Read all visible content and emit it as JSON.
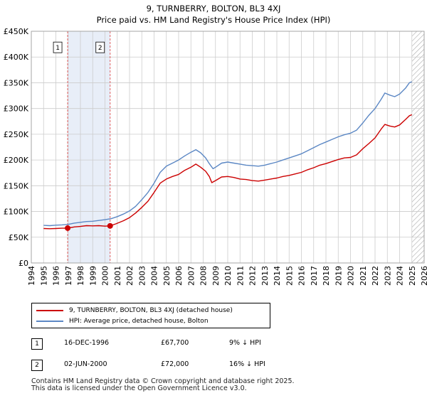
{
  "title": "9, TURNBERRY, BOLTON, BL3 4XJ",
  "subtitle": "Price paid vs. HM Land Registry's House Price Index (HPI)",
  "colors": {
    "property": "#cc0000",
    "hpi": "#5b87c4",
    "shade": "#e8eef8",
    "grid": "#cccccc",
    "marker_line": "#e06060",
    "future_hatch": "#aaaaaa"
  },
  "chart_data": {
    "type": "line",
    "xlim": [
      1994,
      2026
    ],
    "ylim": [
      0,
      450000
    ],
    "x_ticks": [
      1994,
      1995,
      1996,
      1997,
      1998,
      1999,
      2000,
      2001,
      2002,
      2003,
      2004,
      2005,
      2006,
      2007,
      2008,
      2009,
      2010,
      2011,
      2012,
      2013,
      2014,
      2015,
      2016,
      2017,
      2018,
      2019,
      2020,
      2021,
      2022,
      2023,
      2024,
      2025,
      2026
    ],
    "y_ticks": [
      0,
      50000,
      100000,
      150000,
      200000,
      250000,
      300000,
      350000,
      400000,
      450000
    ],
    "y_tick_labels": [
      "£0",
      "£50K",
      "£100K",
      "£150K",
      "£200K",
      "£250K",
      "£300K",
      "£350K",
      "£400K",
      "£450K"
    ],
    "shaded_span": [
      1996.96,
      2000.42
    ],
    "future_start": 2025.0,
    "series": [
      {
        "name": "9, TURNBERRY, BOLTON, BL3 4XJ (detached house)",
        "color": "#cc0000",
        "points": [
          [
            1995.0,
            67000
          ],
          [
            1995.5,
            66500
          ],
          [
            1996.0,
            67000
          ],
          [
            1996.5,
            67500
          ],
          [
            1996.96,
            67700
          ],
          [
            1997.5,
            70000
          ],
          [
            1998.0,
            71000
          ],
          [
            1998.5,
            72500
          ],
          [
            1999.0,
            72000
          ],
          [
            1999.5,
            72500
          ],
          [
            2000.0,
            71500
          ],
          [
            2000.42,
            72000
          ],
          [
            2000.9,
            76000
          ],
          [
            2001.5,
            82000
          ],
          [
            2002.0,
            88000
          ],
          [
            2002.5,
            97000
          ],
          [
            2003.0,
            108000
          ],
          [
            2003.5,
            120000
          ],
          [
            2004.0,
            137000
          ],
          [
            2004.5,
            155000
          ],
          [
            2005.0,
            163000
          ],
          [
            2005.5,
            168000
          ],
          [
            2006.0,
            172000
          ],
          [
            2006.5,
            180000
          ],
          [
            2007.0,
            186000
          ],
          [
            2007.4,
            192000
          ],
          [
            2007.8,
            186000
          ],
          [
            2008.2,
            178000
          ],
          [
            2008.5,
            168000
          ],
          [
            2008.7,
            156000
          ],
          [
            2009.0,
            160000
          ],
          [
            2009.5,
            167000
          ],
          [
            2010.0,
            168000
          ],
          [
            2010.5,
            166000
          ],
          [
            2011.0,
            163000
          ],
          [
            2011.5,
            162000
          ],
          [
            2012.0,
            160000
          ],
          [
            2012.5,
            159000
          ],
          [
            2013.0,
            161000
          ],
          [
            2013.5,
            163000
          ],
          [
            2014.0,
            165000
          ],
          [
            2014.5,
            168000
          ],
          [
            2015.0,
            170000
          ],
          [
            2015.5,
            173000
          ],
          [
            2016.0,
            176000
          ],
          [
            2016.5,
            181000
          ],
          [
            2017.0,
            185000
          ],
          [
            2017.5,
            190000
          ],
          [
            2018.0,
            193000
          ],
          [
            2018.5,
            197000
          ],
          [
            2019.0,
            201000
          ],
          [
            2019.5,
            204000
          ],
          [
            2020.0,
            205000
          ],
          [
            2020.5,
            210000
          ],
          [
            2021.0,
            222000
          ],
          [
            2021.5,
            232000
          ],
          [
            2022.0,
            243000
          ],
          [
            2022.5,
            260000
          ],
          [
            2022.8,
            269000
          ],
          [
            2023.2,
            266000
          ],
          [
            2023.6,
            264000
          ],
          [
            2024.0,
            268000
          ],
          [
            2024.5,
            279000
          ],
          [
            2024.8,
            286000
          ],
          [
            2025.0,
            288000
          ]
        ]
      },
      {
        "name": "HPI: Average price, detached house, Bolton",
        "color": "#5b87c4",
        "points": [
          [
            1995.0,
            73000
          ],
          [
            1995.5,
            72500
          ],
          [
            1996.0,
            73500
          ],
          [
            1996.5,
            74000
          ],
          [
            1997.0,
            75000
          ],
          [
            1997.5,
            77500
          ],
          [
            1998.0,
            79000
          ],
          [
            1998.5,
            80500
          ],
          [
            1999.0,
            81000
          ],
          [
            1999.5,
            82500
          ],
          [
            2000.0,
            84000
          ],
          [
            2000.5,
            86000
          ],
          [
            2001.0,
            90000
          ],
          [
            2001.5,
            95000
          ],
          [
            2002.0,
            101000
          ],
          [
            2002.5,
            110000
          ],
          [
            2003.0,
            123000
          ],
          [
            2003.5,
            137000
          ],
          [
            2004.0,
            155000
          ],
          [
            2004.5,
            176000
          ],
          [
            2005.0,
            188000
          ],
          [
            2005.5,
            194000
          ],
          [
            2006.0,
            200000
          ],
          [
            2006.5,
            208000
          ],
          [
            2007.0,
            215000
          ],
          [
            2007.4,
            220000
          ],
          [
            2007.8,
            214000
          ],
          [
            2008.2,
            204000
          ],
          [
            2008.5,
            193000
          ],
          [
            2008.8,
            183000
          ],
          [
            2009.0,
            186000
          ],
          [
            2009.5,
            194000
          ],
          [
            2010.0,
            196000
          ],
          [
            2010.5,
            194000
          ],
          [
            2011.0,
            192000
          ],
          [
            2011.5,
            190000
          ],
          [
            2012.0,
            189000
          ],
          [
            2012.5,
            188000
          ],
          [
            2013.0,
            190000
          ],
          [
            2013.5,
            193000
          ],
          [
            2014.0,
            196000
          ],
          [
            2014.5,
            200000
          ],
          [
            2015.0,
            204000
          ],
          [
            2015.5,
            208000
          ],
          [
            2016.0,
            212000
          ],
          [
            2016.5,
            218000
          ],
          [
            2017.0,
            224000
          ],
          [
            2017.5,
            230000
          ],
          [
            2018.0,
            235000
          ],
          [
            2018.5,
            240000
          ],
          [
            2019.0,
            245000
          ],
          [
            2019.5,
            249000
          ],
          [
            2020.0,
            252000
          ],
          [
            2020.5,
            258000
          ],
          [
            2021.0,
            272000
          ],
          [
            2021.5,
            287000
          ],
          [
            2022.0,
            300000
          ],
          [
            2022.5,
            318000
          ],
          [
            2022.8,
            330000
          ],
          [
            2023.2,
            326000
          ],
          [
            2023.6,
            323000
          ],
          [
            2024.0,
            328000
          ],
          [
            2024.5,
            340000
          ],
          [
            2024.8,
            350000
          ],
          [
            2025.0,
            352000
          ]
        ]
      }
    ],
    "sales": [
      {
        "label": "1",
        "x": 1996.96,
        "price": 67700
      },
      {
        "label": "2",
        "x": 2000.42,
        "price": 72000
      }
    ],
    "marker_label_y": 418000
  },
  "legend": {
    "property_label": "9, TURNBERRY, BOLTON, BL3 4XJ (detached house)",
    "hpi_label": "HPI: Average price, detached house, Bolton"
  },
  "sales_table": [
    {
      "num": "1",
      "date": "16-DEC-1996",
      "price": "£67,700",
      "hpi": "9% ↓ HPI"
    },
    {
      "num": "2",
      "date": "02-JUN-2000",
      "price": "£72,000",
      "hpi": "16% ↓ HPI"
    }
  ],
  "footer": {
    "line1": "Contains HM Land Registry data © Crown copyright and database right 2025.",
    "line2": "This data is licensed under the Open Government Licence v3.0."
  }
}
